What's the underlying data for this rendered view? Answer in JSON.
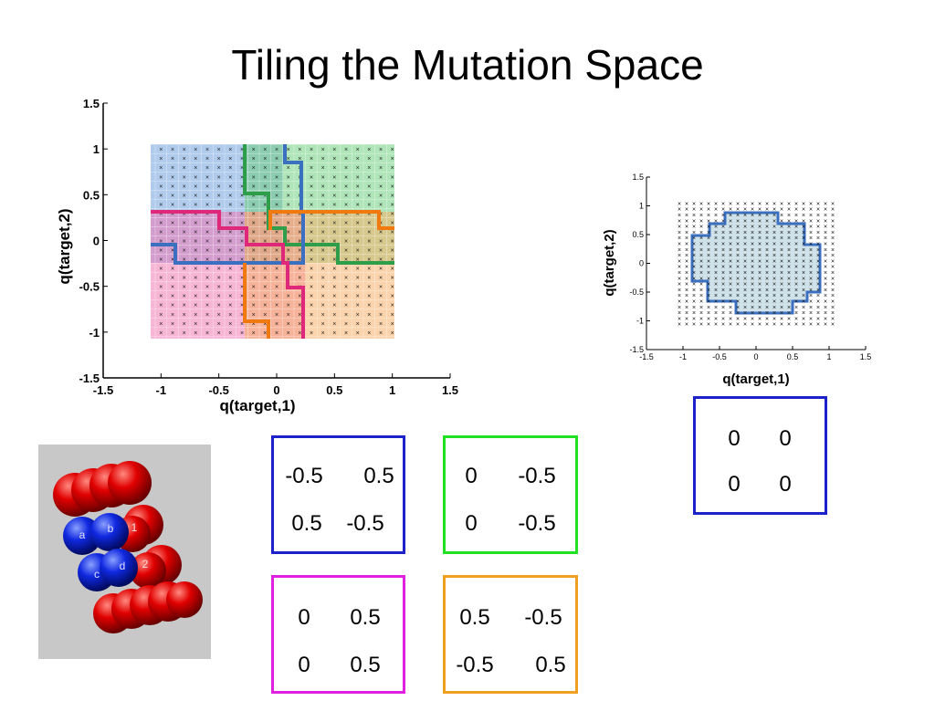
{
  "title": "Tiling the Mutation Space",
  "plots": {
    "main": {
      "x_label": "q(target,1)",
      "y_label": "q(target,2)",
      "x_ticks": [
        "-1.5",
        "-1",
        "-0.5",
        "0",
        "0.5",
        "1",
        "1.5"
      ],
      "y_ticks": [
        "1.5",
        "1",
        "0.5",
        "0",
        "-0.5",
        "-1",
        "-1.5"
      ],
      "xlim": [
        -1.5,
        1.5
      ],
      "ylim": [
        -1.5,
        1.5
      ],
      "grid_range": [
        -1.05,
        1.05
      ],
      "region_colors": {
        "blue": "#3b6fc0",
        "green": "#2e9e4a",
        "magenta": "#e0287a",
        "orange": "#f07a10"
      }
    },
    "small": {
      "x_label": "q(target,1)",
      "y_label": "q(target,2)",
      "x_ticks": [
        "-1.5",
        "-1",
        "-0.5",
        "0",
        "0.5",
        "1",
        "1.5"
      ],
      "y_ticks": [
        "1.5",
        "1",
        "0.5",
        "0",
        "-0.5",
        "-1",
        "-1.5"
      ],
      "xlim": [
        -1.5,
        1.5
      ],
      "ylim": [
        -1.5,
        1.5
      ],
      "region_color": "#3b6fc0"
    }
  },
  "matrices": [
    {
      "name": "blue",
      "color": "#1a22c8",
      "rows": [
        [
          "-0.5",
          "0.5"
        ],
        [
          "0.5",
          "-0.5"
        ]
      ]
    },
    {
      "name": "green",
      "color": "#22e022",
      "rows": [
        [
          "0",
          "-0.5"
        ],
        [
          "0",
          "-0.5"
        ]
      ]
    },
    {
      "name": "magenta",
      "color": "#e020e0",
      "rows": [
        [
          "0",
          "0.5"
        ],
        [
          "0",
          "0.5"
        ]
      ]
    },
    {
      "name": "orange",
      "color": "#f0a020",
      "rows": [
        [
          "0.5",
          "-0.5"
        ],
        [
          "-0.5",
          "0.5"
        ]
      ]
    },
    {
      "name": "zero",
      "color": "#1a22c8",
      "rows": [
        [
          "0",
          "0"
        ],
        [
          "0",
          "0"
        ]
      ]
    }
  ],
  "protein_labels": [
    "a",
    "b",
    "1",
    "c",
    "d",
    "2"
  ]
}
